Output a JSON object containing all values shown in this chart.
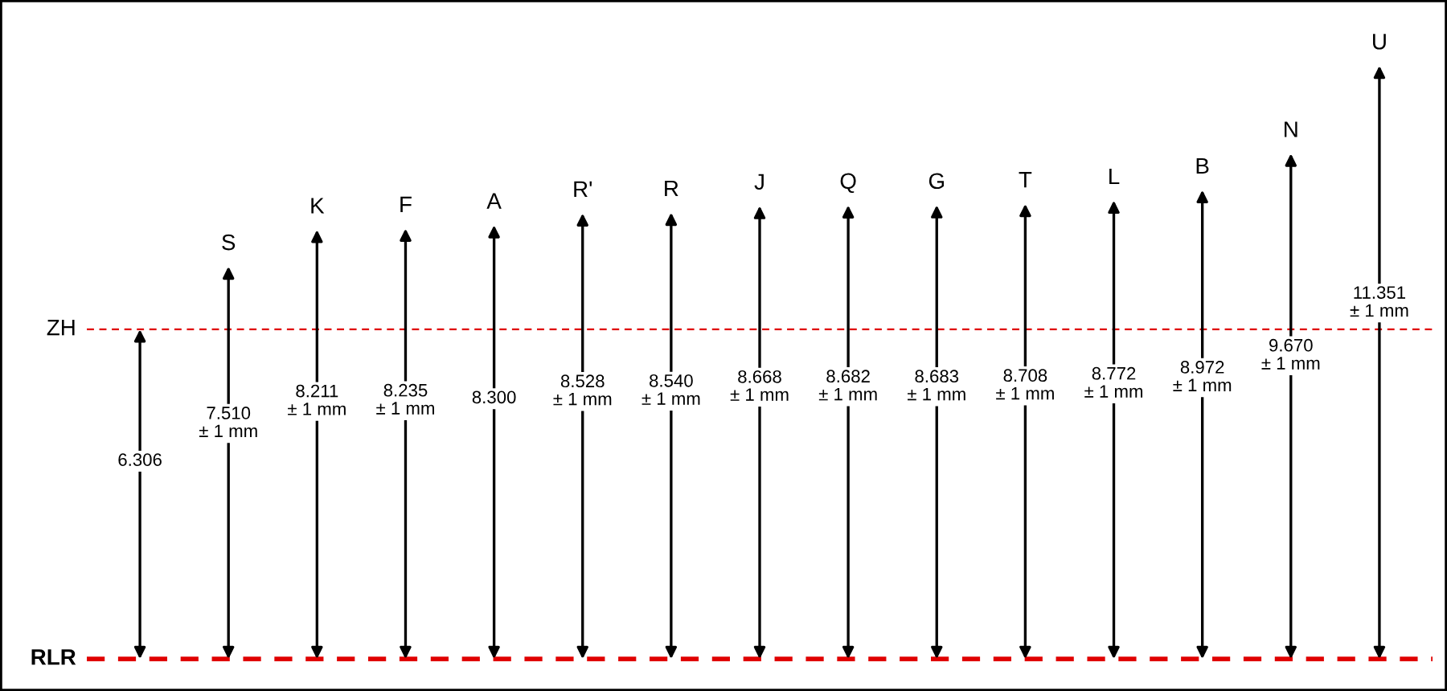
{
  "chart_data": {
    "type": "other",
    "categories": [
      "ZH",
      "S",
      "K",
      "F",
      "A",
      "R'",
      "R",
      "J",
      "Q",
      "G",
      "T",
      "L",
      "B",
      "N",
      "U"
    ],
    "values": [
      6.306,
      7.51,
      8.211,
      8.235,
      8.3,
      8.528,
      8.54,
      8.668,
      8.682,
      8.683,
      8.708,
      8.772,
      8.972,
      9.67,
      11.351
    ],
    "value_labels": [
      "6.306",
      "7.510\n± 1 mm",
      "8.211\n± 1 mm",
      "8.235\n± 1 mm",
      "8.300",
      "8.528\n± 1 mm",
      "8.540\n± 1 mm",
      "8.668\n± 1 mm",
      "8.682\n± 1 mm",
      "8.683\n± 1 mm",
      "8.708\n± 1 mm",
      "8.772\n± 1 mm",
      "8.972\n± 1 mm",
      "9.670\n± 1 mm",
      "11.351\n± 1 mm"
    ],
    "annotations": [
      "RLR"
    ]
  }
}
